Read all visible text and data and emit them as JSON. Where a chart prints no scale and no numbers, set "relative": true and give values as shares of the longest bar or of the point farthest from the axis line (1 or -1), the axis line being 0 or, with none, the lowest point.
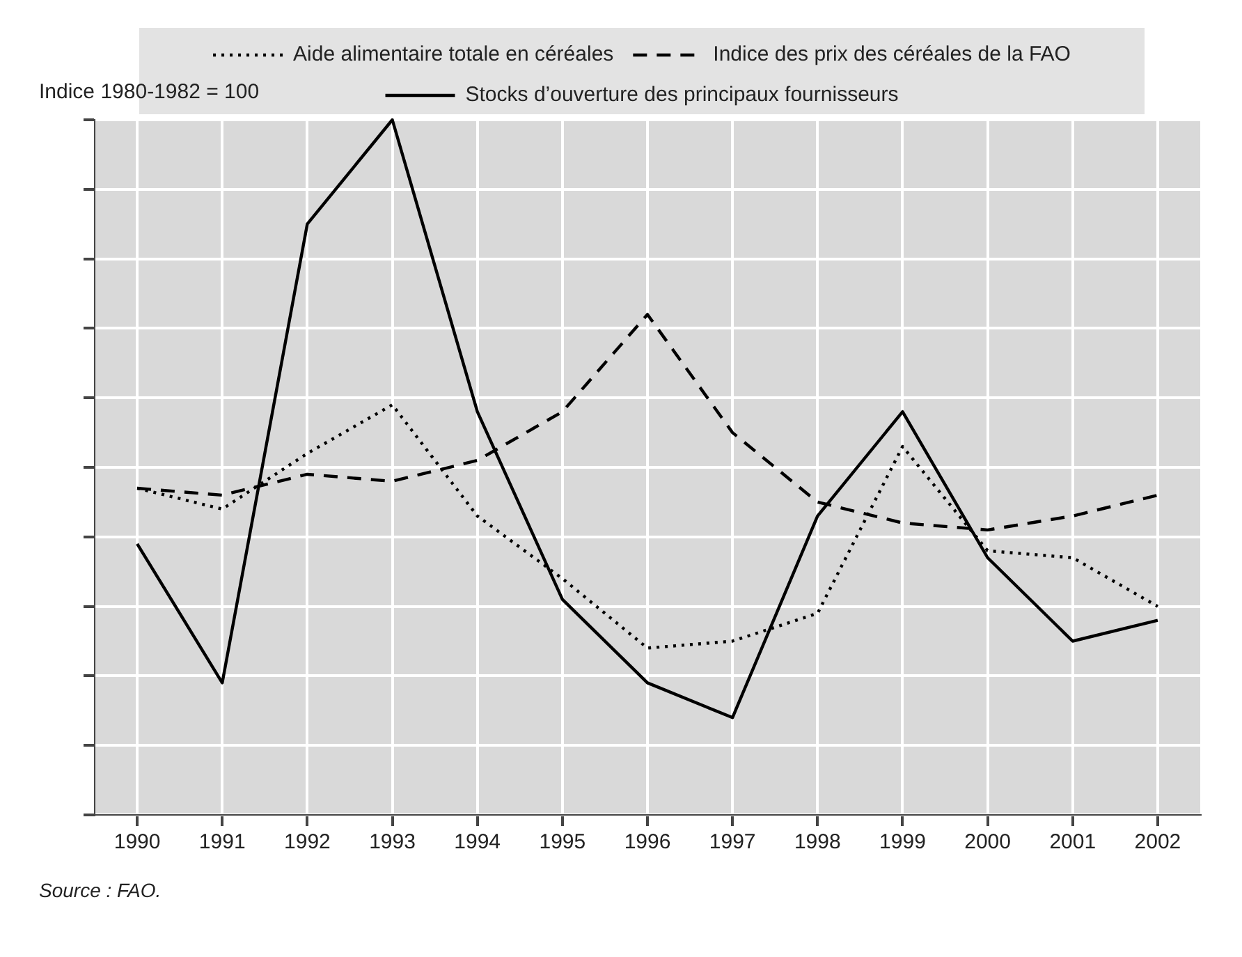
{
  "chart_data": {
    "type": "line",
    "relative": true,
    "ylabel": "Indice 1980-1982 = 100",
    "annotations": [
      "Source : FAO."
    ],
    "categories": [
      "1990",
      "1991",
      "1992",
      "1993",
      "1994",
      "1995",
      "1996",
      "1997",
      "1998",
      "1999",
      "2000",
      "2001",
      "2002"
    ],
    "series": [
      {
        "name": "Aide alimentaire totale en céréales",
        "color": "#000000",
        "line_style": "dotted",
        "values": [
          0.47,
          0.44,
          0.52,
          0.59,
          0.43,
          0.34,
          0.24,
          0.25,
          0.29,
          0.53,
          0.38,
          0.37,
          0.3
        ]
      },
      {
        "name": "Indice des prix des céréales de la FAO",
        "color": "#000000",
        "line_style": "dashed",
        "values": [
          0.47,
          0.46,
          0.49,
          0.48,
          0.51,
          0.58,
          0.72,
          0.55,
          0.45,
          0.42,
          0.41,
          0.43,
          0.46
        ]
      },
      {
        "name": "Stocks d’ouverture des principaux fournisseurs",
        "color": "#000000",
        "line_style": "solid",
        "values": [
          0.39,
          0.19,
          0.85,
          1,
          0.58,
          0.31,
          0.19,
          0.14,
          0.43,
          0.58,
          0.37,
          0.25,
          0.28
        ]
      }
    ],
    "grid": true,
    "legend": "top",
    "marker": "none"
  }
}
